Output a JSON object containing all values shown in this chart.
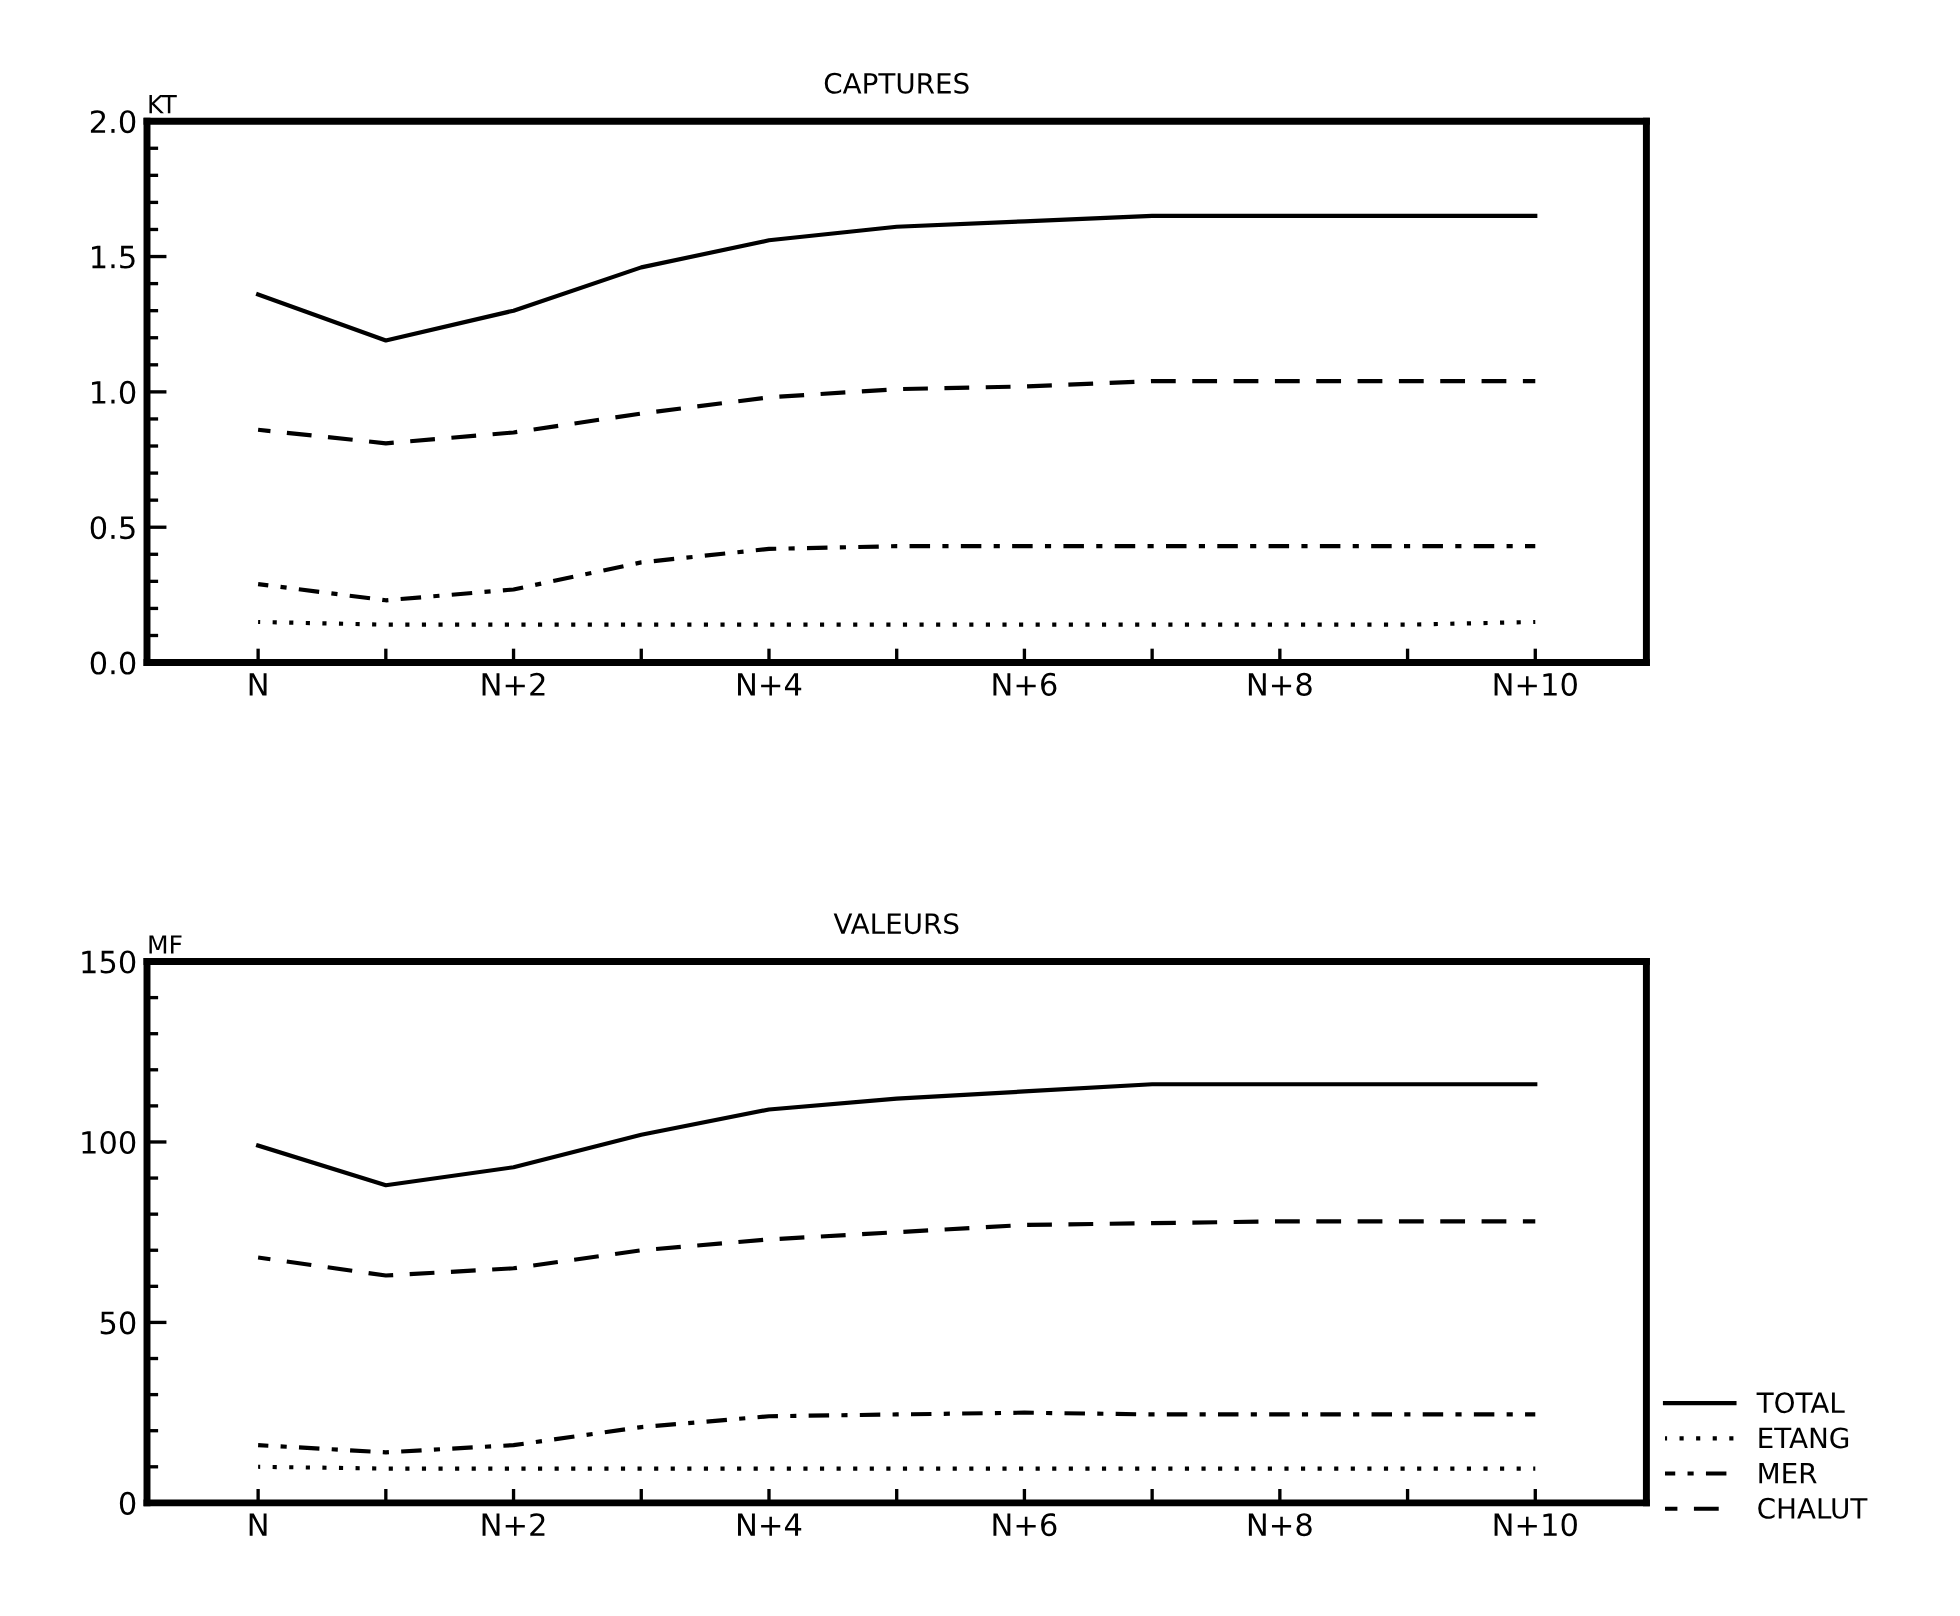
{
  "chart_data": [
    {
      "type": "line",
      "title": "CAPTURES",
      "ylabel": "KT",
      "categories": [
        "N",
        null,
        "N+2",
        null,
        "N+4",
        null,
        "N+6",
        null,
        "N+8",
        null,
        "N+10"
      ],
      "ylim": [
        0,
        2
      ],
      "yticks": [
        {
          "value": 0,
          "label": "0.0"
        },
        {
          "value": 0.1,
          "label": null
        },
        {
          "value": 0.2,
          "label": null
        },
        {
          "value": 0.3,
          "label": null
        },
        {
          "value": 0.4,
          "label": null
        },
        {
          "value": 0.5,
          "label": "0.5"
        },
        {
          "value": 0.6,
          "label": null
        },
        {
          "value": 0.7,
          "label": null
        },
        {
          "value": 0.8,
          "label": null
        },
        {
          "value": 0.9,
          "label": null
        },
        {
          "value": 1,
          "label": "1.0"
        },
        {
          "value": 1.1,
          "label": null
        },
        {
          "value": 1.2,
          "label": null
        },
        {
          "value": 1.3,
          "label": null
        },
        {
          "value": 1.4,
          "label": null
        },
        {
          "value": 1.5,
          "label": "1.5"
        },
        {
          "value": 1.6,
          "label": null
        },
        {
          "value": 1.7,
          "label": null
        },
        {
          "value": 1.8,
          "label": null
        },
        {
          "value": 1.9,
          "label": null
        },
        {
          "value": 2,
          "label": "2.0"
        }
      ],
      "grid": false,
      "legend": false,
      "series": [
        {
          "color": "#000000",
          "line_style": "solid",
          "values": [
            1.36,
            1.19,
            1.3,
            1.46,
            1.56,
            1.61,
            1.63,
            1.65,
            1.65,
            1.65,
            1.65
          ]
        },
        {
          "color": "#000000",
          "line_style": "dotted",
          "values": [
            0.15,
            0.14,
            0.14,
            0.14,
            0.14,
            0.14,
            0.14,
            0.14,
            0.14,
            0.14,
            0.15
          ]
        },
        {
          "color": "#000000",
          "line_style": "dashdot",
          "values": [
            0.29,
            0.23,
            0.27,
            0.37,
            0.42,
            0.43,
            0.43,
            0.43,
            0.43,
            0.43,
            0.43
          ]
        },
        {
          "color": "#000000",
          "line_style": "dashed",
          "values": [
            0.86,
            0.81,
            0.85,
            0.92,
            0.98,
            1.01,
            1.02,
            1.04,
            1.04,
            1.04,
            1.04
          ]
        }
      ]
    },
    {
      "type": "line",
      "title": "VALEURS",
      "ylabel": "MF",
      "categories": [
        "N",
        null,
        "N+2",
        null,
        "N+4",
        null,
        "N+6",
        null,
        "N+8",
        null,
        "N+10"
      ],
      "ylim": [
        0,
        150
      ],
      "yticks": [
        0,
        {
          "value": 10,
          "label": null
        },
        {
          "value": 20,
          "label": null
        },
        {
          "value": 30,
          "label": null
        },
        {
          "value": 40,
          "label": null
        },
        50,
        {
          "value": 60,
          "label": null
        },
        {
          "value": 70,
          "label": null
        },
        {
          "value": 80,
          "label": null
        },
        {
          "value": 90,
          "label": null
        },
        100,
        {
          "value": 110,
          "label": null
        },
        {
          "value": 120,
          "label": null
        },
        {
          "value": 130,
          "label": null
        },
        {
          "value": 140,
          "label": null
        },
        150
      ],
      "grid": false,
      "legend": "bottom right",
      "series": [
        {
          "name": "TOTAL",
          "color": "#000000",
          "line_style": "solid",
          "values": [
            99,
            88,
            93,
            102,
            109,
            112,
            114,
            116,
            116,
            116,
            116
          ]
        },
        {
          "name": "ETANG",
          "color": "#000000",
          "line_style": "dotted",
          "values": [
            10,
            9.5,
            9.5,
            9.5,
            9.5,
            9.5,
            9.5,
            9.5,
            9.5,
            9.5,
            9.5
          ]
        },
        {
          "name": "MER",
          "color": "#000000",
          "line_style": "dashdot",
          "values": [
            16,
            14,
            16,
            21,
            24,
            24.5,
            25,
            24.5,
            24.5,
            24.5,
            24.5
          ]
        },
        {
          "name": "CHALUT",
          "color": "#000000",
          "line_style": "dashed",
          "values": [
            68,
            63,
            65,
            70,
            73,
            75,
            77,
            77.5,
            78,
            78,
            78
          ]
        }
      ]
    }
  ]
}
